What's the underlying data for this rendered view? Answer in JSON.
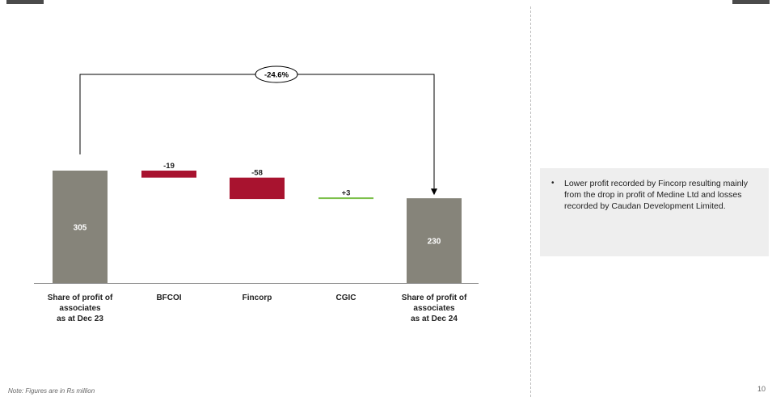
{
  "chart_data": {
    "type": "waterfall",
    "categories": [
      "Share of profit  of\nassociates\nas at Dec 23",
      "BFCOI",
      "Fincorp",
      "CGIC",
      "Share of profit  of\nassociates\nas at Dec 24"
    ],
    "values": [
      305,
      -19,
      -58,
      3,
      230
    ],
    "value_labels": [
      "305",
      "-19",
      "-58",
      "+3",
      "230"
    ],
    "bar_kinds": [
      "total",
      "delta",
      "delta",
      "delta",
      "total"
    ],
    "change_label": "-24.6%",
    "colors": {
      "total": "#86847a",
      "negative": "#a8132f",
      "positive": "#7cc04a",
      "axis": "#8c8c8c",
      "connector": "#000000"
    }
  },
  "commentary": {
    "bullets": [
      "Lower profit recorded by Fincorp resulting mainly from the drop in profit of Medine Ltd and losses recorded by Caudan Development Limited."
    ]
  },
  "footnote": "Note: Figures are in Rs million",
  "page_number": "10"
}
